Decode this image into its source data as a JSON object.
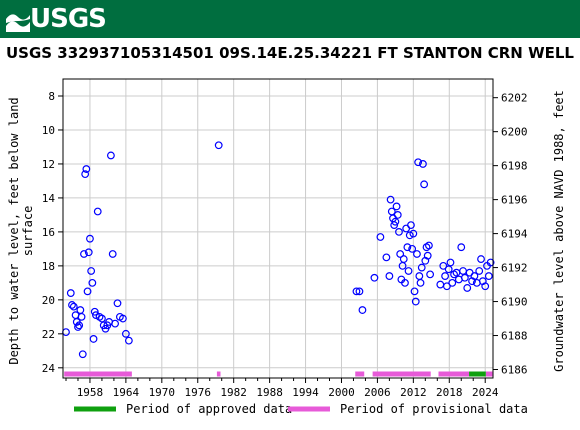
{
  "header": {
    "agency": "USGS"
  },
  "colors": {
    "banner": "#006e3f",
    "point": "#0000ff",
    "approved": "#0fa00f",
    "provisional": "#e75ad8"
  },
  "chart_data": {
    "type": "scatter",
    "title": "USGS 332937105314501 09S.14E.25.34221 FT STANTON CRN WELL",
    "ylabel_left": [
      "Depth to water level, feet below land",
      "surface"
    ],
    "ylabel_right": "Groundwater level above NAVD 1988, feet",
    "xlim": [
      1953.5,
      2025.3
    ],
    "ylim_left": [
      7,
      24.6
    ],
    "left_ticks": [
      8,
      10,
      12,
      14,
      16,
      18,
      20,
      22,
      24
    ],
    "right_ticks": [
      6186,
      6188,
      6190,
      6192,
      6194,
      6196,
      6198,
      6200,
      6202
    ],
    "right_offset": 6210.1,
    "x_ticks": [
      1958,
      1964,
      1970,
      1976,
      1982,
      1988,
      1994,
      2000,
      2006,
      2012,
      2018,
      2024
    ],
    "x_tick_labels": [
      "1958",
      "1964",
      "1970",
      "1976",
      "1982",
      "1988",
      "1994",
      "2000",
      "2006",
      "2012",
      "2018",
      "2024"
    ],
    "series": [
      {
        "points": [
          [
            1954.0,
            21.9
          ],
          [
            1954.8,
            19.6
          ],
          [
            1955.0,
            20.3
          ],
          [
            1955.3,
            20.4
          ],
          [
            1955.6,
            20.9
          ],
          [
            1955.8,
            21.3
          ],
          [
            1956.0,
            21.6
          ],
          [
            1956.2,
            21.5
          ],
          [
            1956.4,
            20.6
          ],
          [
            1956.6,
            21.0
          ],
          [
            1956.8,
            23.2
          ],
          [
            1957.0,
            17.3
          ],
          [
            1957.2,
            12.6
          ],
          [
            1957.4,
            12.3
          ],
          [
            1957.6,
            19.5
          ],
          [
            1957.8,
            17.2
          ],
          [
            1958.0,
            16.4
          ],
          [
            1958.2,
            18.3
          ],
          [
            1958.4,
            19.0
          ],
          [
            1958.6,
            22.3
          ],
          [
            1958.8,
            20.7
          ],
          [
            1959.0,
            20.9
          ],
          [
            1959.3,
            14.8
          ],
          [
            1959.6,
            21.0
          ],
          [
            1960.0,
            21.1
          ],
          [
            1960.3,
            21.5
          ],
          [
            1960.6,
            21.7
          ],
          [
            1960.9,
            21.5
          ],
          [
            1961.2,
            21.3
          ],
          [
            1961.5,
            11.5
          ],
          [
            1961.8,
            17.3
          ],
          [
            1962.2,
            21.4
          ],
          [
            1962.6,
            20.2
          ],
          [
            1963.0,
            21.0
          ],
          [
            1963.5,
            21.1
          ],
          [
            1964.0,
            22.0
          ],
          [
            1964.5,
            22.4
          ],
          [
            1979.5,
            10.9
          ],
          [
            2002.5,
            19.5
          ],
          [
            2003.0,
            19.5
          ],
          [
            2003.5,
            20.6
          ],
          [
            2005.5,
            18.7
          ],
          [
            2006.5,
            16.3
          ],
          [
            2007.5,
            17.5
          ],
          [
            2008.0,
            18.6
          ],
          [
            2008.2,
            14.1
          ],
          [
            2008.4,
            14.8
          ],
          [
            2008.6,
            15.2
          ],
          [
            2008.8,
            15.6
          ],
          [
            2009.0,
            15.4
          ],
          [
            2009.2,
            14.5
          ],
          [
            2009.4,
            15.0
          ],
          [
            2009.6,
            16.0
          ],
          [
            2009.8,
            17.3
          ],
          [
            2010.0,
            18.8
          ],
          [
            2010.2,
            18.0
          ],
          [
            2010.4,
            17.6
          ],
          [
            2010.6,
            19.0
          ],
          [
            2010.8,
            15.8
          ],
          [
            2011.0,
            16.9
          ],
          [
            2011.2,
            18.3
          ],
          [
            2011.4,
            16.2
          ],
          [
            2011.6,
            15.6
          ],
          [
            2011.8,
            17.0
          ],
          [
            2012.0,
            16.1
          ],
          [
            2012.2,
            19.5
          ],
          [
            2012.4,
            20.1
          ],
          [
            2012.6,
            17.3
          ],
          [
            2012.8,
            11.9
          ],
          [
            2013.0,
            18.6
          ],
          [
            2013.2,
            19.0
          ],
          [
            2013.4,
            18.1
          ],
          [
            2013.6,
            12.0
          ],
          [
            2013.8,
            13.2
          ],
          [
            2014.0,
            17.7
          ],
          [
            2014.2,
            16.9
          ],
          [
            2014.4,
            17.4
          ],
          [
            2014.6,
            16.8
          ],
          [
            2014.8,
            18.5
          ],
          [
            2016.5,
            19.1
          ],
          [
            2017.0,
            18.0
          ],
          [
            2017.3,
            18.6
          ],
          [
            2017.6,
            19.2
          ],
          [
            2017.9,
            18.2
          ],
          [
            2018.2,
            17.8
          ],
          [
            2018.5,
            19.0
          ],
          [
            2018.8,
            18.5
          ],
          [
            2019.2,
            18.4
          ],
          [
            2019.6,
            18.8
          ],
          [
            2020.0,
            16.9
          ],
          [
            2020.3,
            18.3
          ],
          [
            2020.6,
            18.7
          ],
          [
            2021.0,
            19.3
          ],
          [
            2021.4,
            18.4
          ],
          [
            2021.8,
            18.9
          ],
          [
            2022.2,
            18.6
          ],
          [
            2022.6,
            19.0
          ],
          [
            2023.0,
            18.3
          ],
          [
            2023.3,
            17.6
          ],
          [
            2023.6,
            18.9
          ],
          [
            2024.0,
            19.2
          ],
          [
            2024.3,
            18.0
          ],
          [
            2024.6,
            18.6
          ],
          [
            2024.9,
            17.8
          ]
        ]
      }
    ],
    "periods_approved": [
      [
        2021.3,
        2024.1
      ]
    ],
    "periods_provisional": [
      [
        1953.7,
        1965.0
      ],
      [
        1979.2,
        1979.8
      ],
      [
        2002.3,
        2003.8
      ],
      [
        2005.2,
        2014.9
      ],
      [
        2016.2,
        2021.3
      ],
      [
        2024.1,
        2025.2
      ]
    ],
    "legend": {
      "approved_label": "Period of approved data",
      "provisional_label": "Period of provisional data",
      "placement": "bottom"
    }
  }
}
